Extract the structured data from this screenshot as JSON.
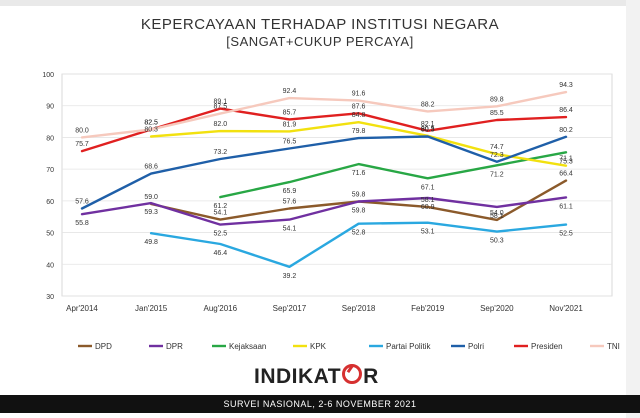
{
  "header": {
    "title": "KEPERCAYAAN TERHADAP INSTITUSI NEGARA",
    "subtitle": "[SANGAT+CUKUP PERCAYA]"
  },
  "brand": {
    "logo_text_left": "INDIKAT",
    "logo_text_right": "R",
    "footer_text": "SURVEI NASIONAL, 2-6 NOVEMBER 2021"
  },
  "chart_data": {
    "type": "line",
    "title": "KEPERCAYAAN TERHADAP INSTITUSI NEGARA",
    "subtitle": "[SANGAT+CUKUP PERCAYA]",
    "categories": [
      "Apr'2014",
      "Jan'2015",
      "Aug'2016",
      "Sep'2017",
      "Sep'2018",
      "Feb'2019",
      "Sep'2020",
      "Nov'2021"
    ],
    "y_ticks": [
      30,
      40,
      50,
      60,
      70,
      80,
      90,
      100
    ],
    "ylim": [
      30,
      100
    ],
    "grid": true,
    "legend_position": "bottom",
    "series": [
      {
        "name": "DPD",
        "color": "#8b5a2b",
        "values": [
          null,
          59.0,
          54.1,
          57.6,
          59.8,
          58.1,
          54.0,
          66.4
        ]
      },
      {
        "name": "DPR",
        "color": "#7030a0",
        "values": [
          55.8,
          59.3,
          52.5,
          54.1,
          59.8,
          60.9,
          58.1,
          61.1
        ]
      },
      {
        "name": "Kejaksaan",
        "color": "#28a745",
        "values": [
          null,
          null,
          61.2,
          65.9,
          71.6,
          67.1,
          71.2,
          75.3
        ]
      },
      {
        "name": "KPK",
        "color": "#f2e10f",
        "values": [
          null,
          80.3,
          82.0,
          81.9,
          84.8,
          80.5,
          74.7,
          71.1
        ]
      },
      {
        "name": "Partai Politik",
        "color": "#2aa8e0",
        "values": [
          null,
          49.8,
          46.4,
          39.2,
          52.8,
          53.1,
          50.3,
          52.5
        ]
      },
      {
        "name": "Polri",
        "color": "#1f5fa8",
        "values": [
          57.6,
          68.6,
          73.2,
          76.5,
          79.8,
          80.3,
          72.3,
          80.2
        ]
      },
      {
        "name": "Presiden",
        "color": "#e02020",
        "values": [
          75.7,
          82.5,
          89.1,
          85.7,
          87.6,
          82.1,
          85.5,
          86.4
        ]
      },
      {
        "name": "TNI",
        "color": "#f6c9bd",
        "values": [
          80.0,
          82.5,
          87.5,
          92.4,
          91.6,
          88.2,
          89.8,
          94.3
        ]
      }
    ]
  }
}
